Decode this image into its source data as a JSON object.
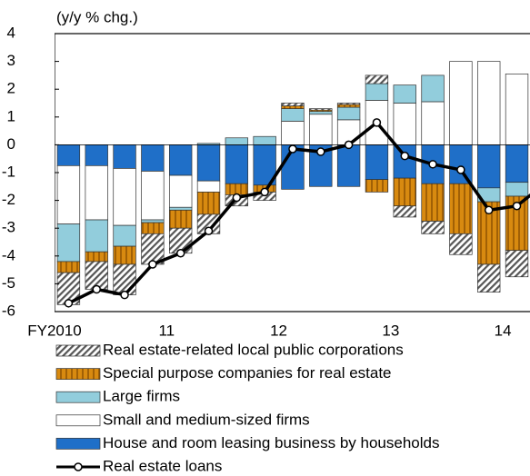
{
  "chart_data": {
    "type": "bar",
    "stacked": true,
    "y_unit_label": "(y/y % chg.)",
    "categories": [
      "FY2010",
      null,
      null,
      null,
      "11",
      null,
      null,
      null,
      "12",
      null,
      null,
      null,
      "13",
      null,
      null,
      null,
      "14",
      null,
      null
    ],
    "ylim": [
      -6,
      4
    ],
    "yticks": [
      -6,
      -5,
      -4,
      -3,
      -2,
      -1,
      0,
      1,
      2,
      3,
      4
    ],
    "series": [
      {
        "name": "House and room leasing business by households",
        "color": "#1f6fc8",
        "pattern": "solid",
        "values": [
          -0.75,
          -0.75,
          -0.85,
          -0.95,
          -1.1,
          -1.3,
          -1.4,
          -1.45,
          -1.6,
          -1.5,
          -1.5,
          -1.25,
          -1.2,
          -1.4,
          -1.4,
          -1.55,
          -1.35,
          -1.6,
          -1.5
        ]
      },
      {
        "name": "Small and medium-sized firms",
        "color": "#ffffff",
        "pattern": "solid",
        "values": [
          -2.1,
          -1.95,
          -2.05,
          -1.75,
          -1.15,
          -0.4,
          0,
          0,
          0.85,
          1.1,
          0.9,
          1.6,
          1.5,
          1.55,
          3.0,
          3.0,
          2.55,
          2.75,
          2.1
        ]
      },
      {
        "name": "Large firms",
        "color": "#92cddc",
        "pattern": "solid",
        "values": [
          -1.35,
          -1.15,
          -0.75,
          -0.1,
          -0.1,
          0.05,
          0.25,
          0.3,
          0.45,
          0.1,
          0.45,
          0.6,
          0.65,
          0.95,
          0,
          -0.5,
          -0.5,
          0.25,
          1.0
        ]
      },
      {
        "name": "Special purpose companies for real estate",
        "color": "#d88a10",
        "pattern": "stripes",
        "values": [
          -0.4,
          -0.35,
          -0.65,
          -0.4,
          -0.65,
          -0.8,
          -0.4,
          -0.25,
          0.1,
          0.05,
          0.1,
          -0.45,
          -1.0,
          -1.35,
          -1.8,
          -2.25,
          -1.95,
          -1.95,
          -1.6
        ]
      },
      {
        "name": "Real estate-related local public corporations",
        "color": "#555555",
        "pattern": "hatch",
        "values": [
          -1.15,
          -1.0,
          -1.1,
          -1.1,
          -0.9,
          -0.7,
          -0.4,
          -0.3,
          0.1,
          0.05,
          0.05,
          0.3,
          -0.4,
          -0.45,
          -0.75,
          -1.0,
          -0.95,
          -0.9,
          -0.8
        ]
      },
      {
        "name": "Real estate loans",
        "type": "line",
        "color": "#000000",
        "marker_color": "#ffffff",
        "values": [
          -5.7,
          -5.2,
          -5.4,
          -4.3,
          -3.9,
          -3.1,
          -1.9,
          -1.7,
          -0.15,
          -0.25,
          0.0,
          0.8,
          -0.4,
          -0.7,
          -0.9,
          -2.35,
          -2.2,
          -1.4,
          -0.75
        ]
      }
    ],
    "legend_order": [
      4,
      3,
      2,
      1,
      0,
      5
    ],
    "legend_position": "bottom-left"
  }
}
